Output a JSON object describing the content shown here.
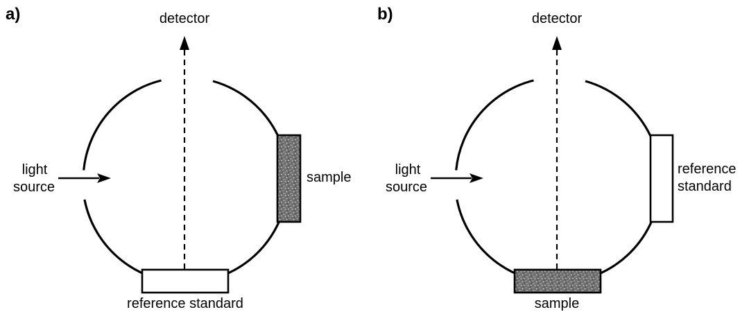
{
  "panels": [
    {
      "label": "a)",
      "detector": "detector",
      "light_source": [
        "light",
        "source"
      ],
      "sample": "sample",
      "reference": [
        "reference standard"
      ]
    },
    {
      "label": "b)",
      "detector": "detector",
      "light_source": [
        "light",
        "source"
      ],
      "sample": "sample",
      "reference": [
        "reference",
        "standard"
      ]
    }
  ],
  "colors": {
    "line": "#000000",
    "sample_fill": "#6e6e6e",
    "background": "#ffffff"
  }
}
